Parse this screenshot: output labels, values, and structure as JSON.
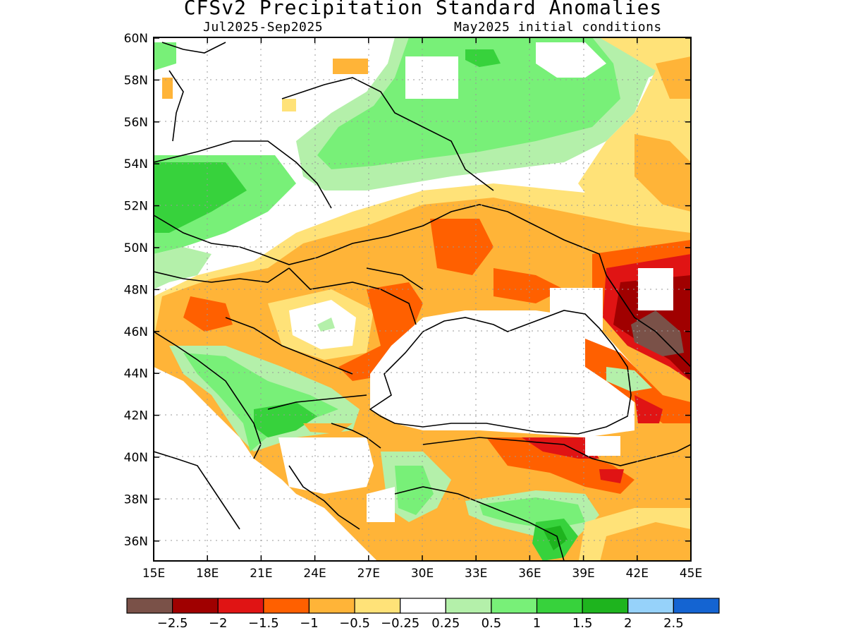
{
  "header": {
    "title": "CFSv2 Precipitation Standard Anomalies",
    "period": "Jul2025-Sep2025",
    "init": "May2025 initial conditions"
  },
  "map": {
    "lon_ticks": [
      "15E",
      "18E",
      "21E",
      "24E",
      "27E",
      "30E",
      "33E",
      "36E",
      "39E",
      "42E",
      "45E"
    ],
    "lat_ticks": [
      "60N",
      "58N",
      "56N",
      "54N",
      "52N",
      "50N",
      "48N",
      "46N",
      "44N",
      "42N",
      "40N",
      "38N",
      "36N"
    ],
    "lon_range": [
      15,
      45
    ],
    "lat_range": [
      35,
      60
    ],
    "grid": true
  },
  "colorbar": {
    "colors": [
      "#7a5148",
      "#a00000",
      "#e01414",
      "#ff6000",
      "#ffb438",
      "#ffe278",
      "#ffffff",
      "#b4f0aa",
      "#78f078",
      "#37d23c",
      "#1eb41e",
      "#96d2fa",
      "#1464d2"
    ],
    "labels": [
      "-2.5",
      "-2",
      "-1.5",
      "-1",
      "-0.5",
      "-0.25",
      "0.25",
      "0.5",
      "1",
      "1.5",
      "2",
      "2.5"
    ]
  }
}
